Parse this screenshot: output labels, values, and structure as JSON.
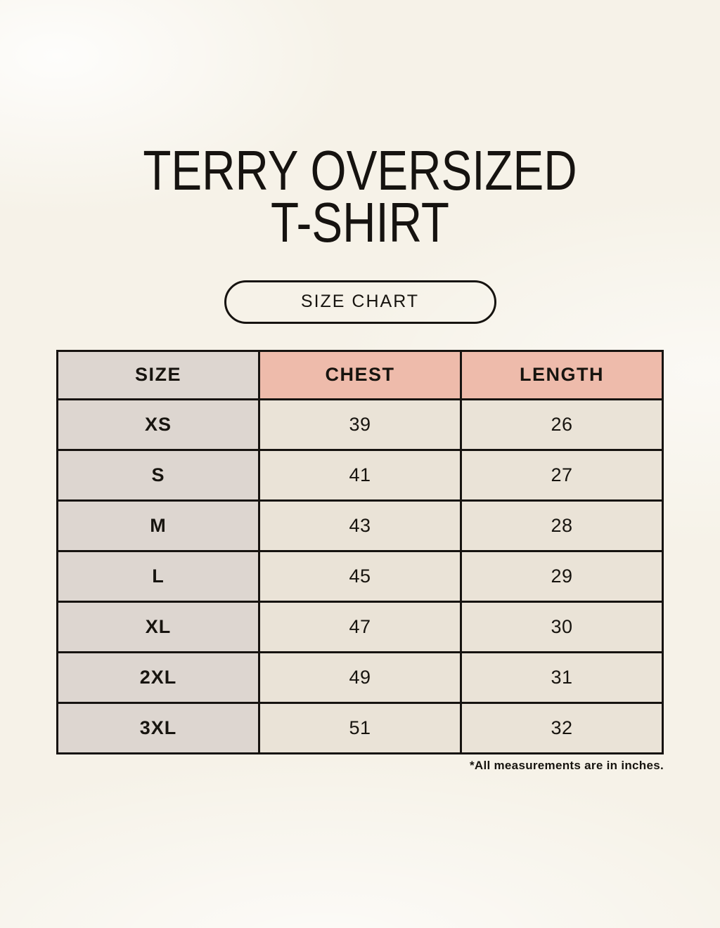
{
  "header": {
    "title_line1": "TERRY OVERSIZED",
    "title_line2": "T-SHIRT",
    "badge_label": "SIZE CHART"
  },
  "table": {
    "columns": [
      "SIZE",
      "CHEST",
      "LENGTH"
    ],
    "rows": [
      {
        "size": "XS",
        "chest": "39",
        "length": "26"
      },
      {
        "size": "S",
        "chest": "41",
        "length": "27"
      },
      {
        "size": "M",
        "chest": "43",
        "length": "28"
      },
      {
        "size": "L",
        "chest": "45",
        "length": "29"
      },
      {
        "size": "XL",
        "chest": "47",
        "length": "30"
      },
      {
        "size": "2XL",
        "chest": "49",
        "length": "31"
      },
      {
        "size": "3XL",
        "chest": "51",
        "length": "32"
      }
    ],
    "footnote": "*All measurements are in inches."
  },
  "colors": {
    "page_background": "#f6f2e8",
    "size_column_bg": "#ddd6d0",
    "measure_header_bg": "#eebbab",
    "value_cell_bg": "#eae3d7",
    "table_border": "#161310",
    "text": "#17140f"
  }
}
